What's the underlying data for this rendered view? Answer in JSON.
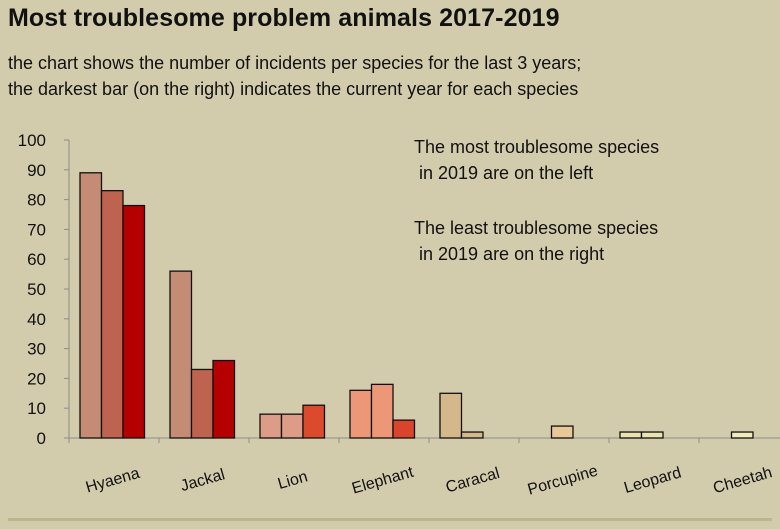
{
  "page": {
    "title": "Most troublesome problem animals 2017-2019",
    "subtitle_lines": [
      "the chart shows the number of incidents per species for the last 3 years;",
      "the darkest bar (on the right) indicates the current year for each species"
    ]
  },
  "annotations": [
    [
      "The most troublesome species",
      " in 2019 are on the left"
    ],
    [
      "The least troublesome species",
      " in 2019 are on the right"
    ]
  ],
  "chart_data": {
    "type": "bar",
    "title": "Most troublesome problem animals 2017-2019",
    "xlabel": "",
    "ylabel": "",
    "ylim": [
      0,
      100
    ],
    "yticks": [
      0,
      10,
      20,
      30,
      40,
      50,
      60,
      70,
      80,
      90,
      100
    ],
    "grid": false,
    "legend": "none",
    "categories": [
      "Hyaena",
      "Jackal",
      "Lion",
      "Elephant",
      "Caracal",
      "Porcupine",
      "Leopard",
      "Cheetah"
    ],
    "series": [
      {
        "values": [
          89,
          56,
          8,
          16,
          15,
          0,
          2,
          0
        ]
      },
      {
        "values": [
          83,
          23,
          8,
          18,
          2,
          4,
          2,
          2
        ]
      },
      {
        "values": [
          78,
          26,
          11,
          6,
          0,
          0,
          0,
          0
        ]
      }
    ],
    "bar_colors": [
      [
        "#c48c74",
        "#bd6350",
        "#b40000"
      ],
      [
        "#c48c74",
        "#bd6350",
        "#b40000"
      ],
      [
        "#dc9c87",
        "#dc9c87",
        "#dc4a2e"
      ],
      [
        "#ec9878",
        "#ec9878",
        "#d8442c"
      ],
      [
        "#d4b88c",
        "#d4b88c",
        "#d4b88c"
      ],
      [
        "#e8c898",
        "#e8c898",
        "#e8c898"
      ],
      [
        "#ece2b0",
        "#ece2b0",
        "#ece2b0"
      ],
      [
        "#f0eabc",
        "#f0eabc",
        "#f0eabc"
      ]
    ]
  }
}
